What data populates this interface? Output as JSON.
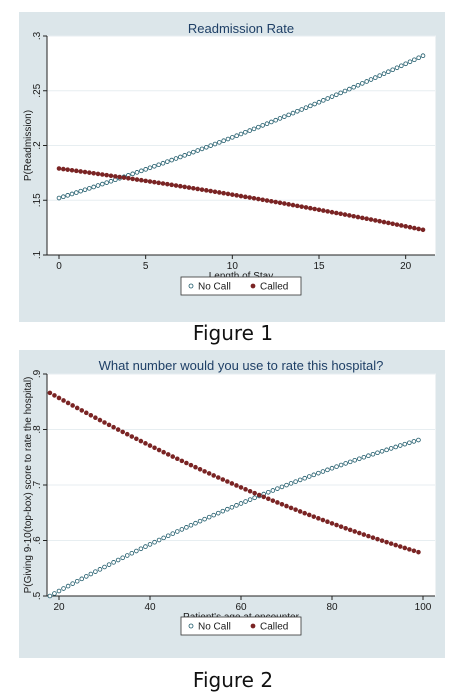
{
  "chart_data": [
    {
      "type": "scatter",
      "title": "Readmission Rate",
      "xlabel": "Length of Stay",
      "ylabel": "P(Readmission)",
      "xlim": [
        0,
        21
      ],
      "ylim": [
        0.1,
        0.3
      ],
      "xticks": [
        0,
        5,
        10,
        15,
        20
      ],
      "xtick_labels": [
        "0",
        "5",
        "10",
        "15",
        "20"
      ],
      "yticks": [
        0.1,
        0.15,
        0.2,
        0.25,
        0.3
      ],
      "ytick_labels": [
        ".1",
        ".15",
        ".2",
        ".25",
        ".3"
      ],
      "grid": "horizontal",
      "legend": "bottom",
      "x_start": 0,
      "x_end": 21,
      "x_step": 0.25,
      "series": [
        {
          "name": "No Call",
          "marker": "hollow-circle",
          "color": "#1e5a6a",
          "start": 0.152,
          "end": 0.282,
          "shape": "convex"
        },
        {
          "name": "Called",
          "marker": "filled-circle",
          "color": "#7a2424",
          "start": 0.179,
          "end": 0.123,
          "shape": "convex"
        }
      ]
    },
    {
      "type": "scatter",
      "title": "What number would you use to rate this hospital?",
      "xlabel": "Patient's age at encounter",
      "ylabel": "P(Giving 9-10(top-box) score to rate the hospital)",
      "xlim": [
        20,
        100
      ],
      "ylim": [
        0.5,
        0.9
      ],
      "xticks": [
        20,
        40,
        60,
        80,
        100
      ],
      "xtick_labels": [
        "20",
        "40",
        "60",
        "80",
        "100"
      ],
      "yticks": [
        0.5,
        0.6,
        0.7,
        0.8,
        0.9
      ],
      "ytick_labels": [
        ".5",
        ".6",
        ".7",
        ".8",
        ".9"
      ],
      "grid": "horizontal",
      "legend": "bottom",
      "x_start": 18,
      "x_end": 99,
      "x_step": 1,
      "series": [
        {
          "name": "No Call",
          "marker": "hollow-circle",
          "color": "#1e5a6a",
          "start": 0.5,
          "end": 0.781,
          "shape": "concave"
        },
        {
          "name": "Called",
          "marker": "filled-circle",
          "color": "#7a2424",
          "start": 0.866,
          "end": 0.579,
          "shape": "concave"
        }
      ]
    }
  ],
  "captions": [
    "Figure 1",
    "Figure 2"
  ]
}
